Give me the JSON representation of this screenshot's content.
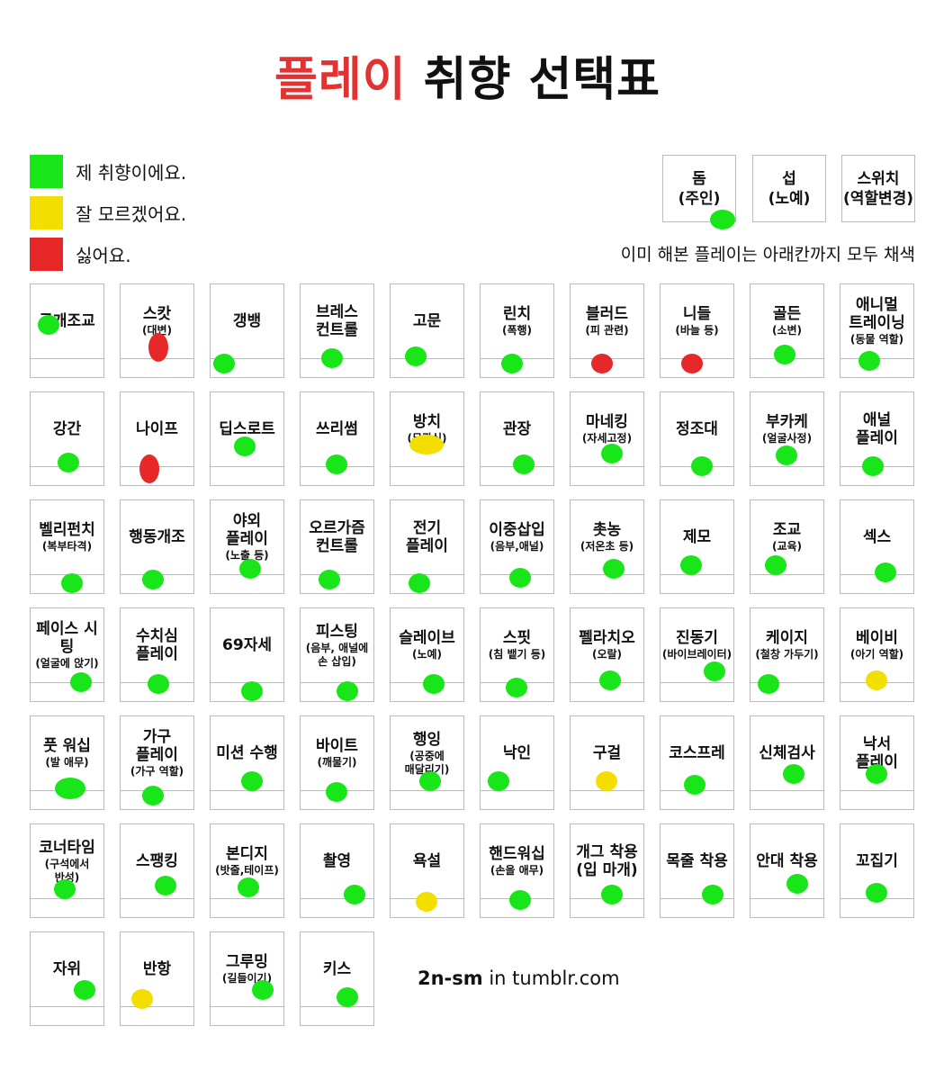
{
  "title": {
    "highlight": "플레이",
    "rest": "취향 선택표"
  },
  "colors": {
    "green": "#19e619",
    "yellow": "#f2df00",
    "red": "#e62828",
    "title_red": "#e33232"
  },
  "legend": [
    {
      "color": "#19e619",
      "label": "제 취향이에요."
    },
    {
      "color": "#f2df00",
      "label": "잘 모르겠어요."
    },
    {
      "color": "#e62828",
      "label": "싫어요."
    }
  ],
  "roles": [
    {
      "line1": "돔",
      "line2": "(주인)",
      "selected": "green"
    },
    {
      "line1": "섭",
      "line2": "(노예)",
      "selected": null
    },
    {
      "line1": "스위치",
      "line2": "(역할변경)",
      "selected": null
    }
  ],
  "note": "이미 해본 플레이는 아래칸까지 모두 채색",
  "items": [
    {
      "name": "공개조교",
      "sub": "",
      "pref": "green"
    },
    {
      "name": "스캇",
      "sub": "(대변)",
      "pref": "red"
    },
    {
      "name": "갱뱅",
      "sub": "",
      "pref": "green"
    },
    {
      "name": "브레스\n컨트롤",
      "sub": "",
      "pref": "green"
    },
    {
      "name": "고문",
      "sub": "",
      "pref": "green"
    },
    {
      "name": "린치",
      "sub": "(폭행)",
      "pref": "green"
    },
    {
      "name": "블러드",
      "sub": "(피 관련)",
      "pref": "red"
    },
    {
      "name": "니들",
      "sub": "(바늘 등)",
      "pref": "red"
    },
    {
      "name": "골든",
      "sub": "(소변)",
      "pref": "green"
    },
    {
      "name": "애니멀\n트레이닝",
      "sub": "(동물 역할)",
      "pref": "green"
    },
    {
      "name": "강간",
      "sub": "",
      "pref": "green"
    },
    {
      "name": "나이프",
      "sub": "",
      "pref": "red"
    },
    {
      "name": "딥스로트",
      "sub": "",
      "pref": "green"
    },
    {
      "name": "쓰리썸",
      "sub": "",
      "pref": "green"
    },
    {
      "name": "방치",
      "sub": "(무관심)",
      "pref": "yellow"
    },
    {
      "name": "관장",
      "sub": "",
      "pref": "green"
    },
    {
      "name": "마네킹",
      "sub": "(자세고정)",
      "pref": "green"
    },
    {
      "name": "정조대",
      "sub": "",
      "pref": "green"
    },
    {
      "name": "부카케",
      "sub": "(얼굴사정)",
      "pref": "green"
    },
    {
      "name": "애널\n플레이",
      "sub": "",
      "pref": "green"
    },
    {
      "name": "벨리펀치",
      "sub": "(복부타격)",
      "pref": "green"
    },
    {
      "name": "행동개조",
      "sub": "",
      "pref": "green"
    },
    {
      "name": "야외\n플레이",
      "sub": "(노출 등)",
      "pref": "green"
    },
    {
      "name": "오르가즘\n컨트롤",
      "sub": "",
      "pref": "green"
    },
    {
      "name": "전기\n플레이",
      "sub": "",
      "pref": "green"
    },
    {
      "name": "이중삽입",
      "sub": "(음부,애널)",
      "pref": "green"
    },
    {
      "name": "촛농",
      "sub": "(저온초 등)",
      "pref": "green"
    },
    {
      "name": "제모",
      "sub": "",
      "pref": "green"
    },
    {
      "name": "조교",
      "sub": "(교육)",
      "pref": "green"
    },
    {
      "name": "섹스",
      "sub": "",
      "pref": "green"
    },
    {
      "name": "페이스 시팅",
      "sub": "(얼굴에 앉기)",
      "pref": "green"
    },
    {
      "name": "수치심\n플레이",
      "sub": "",
      "pref": "green"
    },
    {
      "name": "69자세",
      "sub": "",
      "pref": "green"
    },
    {
      "name": "피스팅",
      "sub": "(음부, 애널에\n손 삽입)",
      "pref": "green"
    },
    {
      "name": "슬레이브",
      "sub": "(노예)",
      "pref": "green"
    },
    {
      "name": "스핏",
      "sub": "(침 뱉기 등)",
      "pref": "green"
    },
    {
      "name": "펠라치오",
      "sub": "(오랄)",
      "pref": "green"
    },
    {
      "name": "진동기",
      "sub": "(바이브레이터)",
      "pref": "green"
    },
    {
      "name": "케이지",
      "sub": "(철창 가두기)",
      "pref": "green"
    },
    {
      "name": "베이비",
      "sub": "(아기 역할)",
      "pref": "yellow"
    },
    {
      "name": "풋 워십",
      "sub": "(발 애무)",
      "pref": "green"
    },
    {
      "name": "가구\n플레이",
      "sub": "(가구 역할)",
      "pref": "green"
    },
    {
      "name": "미션 수행",
      "sub": "",
      "pref": "green"
    },
    {
      "name": "바이트",
      "sub": "(깨물기)",
      "pref": "green"
    },
    {
      "name": "행잉",
      "sub": "(공중에\n매달리기)",
      "pref": "green"
    },
    {
      "name": "낙인",
      "sub": "",
      "pref": "green"
    },
    {
      "name": "구걸",
      "sub": "",
      "pref": "yellow"
    },
    {
      "name": "코스프레",
      "sub": "",
      "pref": "green"
    },
    {
      "name": "신체검사",
      "sub": "",
      "pref": "green"
    },
    {
      "name": "낙서\n플레이",
      "sub": "",
      "pref": "green"
    },
    {
      "name": "코너타임",
      "sub": "(구석에서\n반성)",
      "pref": "green"
    },
    {
      "name": "스팽킹",
      "sub": "",
      "pref": "green"
    },
    {
      "name": "본디지",
      "sub": "(밧줄,테이프)",
      "pref": "green"
    },
    {
      "name": "촬영",
      "sub": "",
      "pref": "green"
    },
    {
      "name": "욕설",
      "sub": "",
      "pref": "yellow"
    },
    {
      "name": "핸드워십",
      "sub": "(손을 애무)",
      "pref": "green"
    },
    {
      "name": "개그 착용\n(입 마개)",
      "sub": "",
      "pref": "green"
    },
    {
      "name": "목줄 착용",
      "sub": "",
      "pref": "green"
    },
    {
      "name": "안대 착용",
      "sub": "",
      "pref": "green"
    },
    {
      "name": "꼬집기",
      "sub": "",
      "pref": "green"
    },
    {
      "name": "자위",
      "sub": "",
      "pref": "green"
    },
    {
      "name": "반항",
      "sub": "",
      "pref": "yellow"
    },
    {
      "name": "그루밍",
      "sub": "(길들이기)",
      "pref": "green"
    },
    {
      "name": "키스",
      "sub": "",
      "pref": "green"
    }
  ],
  "credit": {
    "bold": "2n-sm",
    "rest": " in tumblr.com"
  }
}
